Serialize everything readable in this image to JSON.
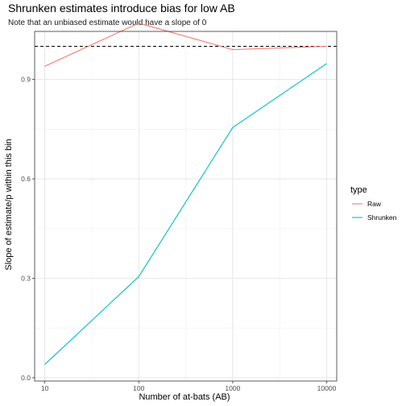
{
  "chart_data": {
    "type": "line",
    "title": "Shrunken estimates introduce bias for low AB",
    "subtitle": "Note that an unbiased estimate would have a slope of 0",
    "xlabel": "Number of at-bats (AB)",
    "ylabel": "Slope of estimate/p within this bin",
    "x_scale": "log10",
    "x": [
      10,
      100,
      1000,
      10000
    ],
    "x_tick_labels": [
      "10",
      "100",
      "1000",
      "10000"
    ],
    "y_ticks": [
      0.0,
      0.3,
      0.6,
      0.9
    ],
    "y_tick_labels": [
      "0.0",
      "0.3",
      "0.6",
      "0.9"
    ],
    "xlim": [
      7.8,
      12800
    ],
    "ylim": [
      -0.01,
      1.045
    ],
    "reference_line": {
      "y": 1.0,
      "style": "dashed",
      "color": "#000000"
    },
    "grid": true,
    "legend": {
      "title": "type",
      "position": "right"
    },
    "series": [
      {
        "name": "Raw",
        "color": "#F8766D",
        "values": [
          0.94,
          1.07,
          0.99,
          1.0
        ]
      },
      {
        "name": "Shrunken",
        "color": "#00BFC4",
        "values": [
          0.04,
          0.305,
          0.755,
          0.948
        ]
      }
    ]
  }
}
